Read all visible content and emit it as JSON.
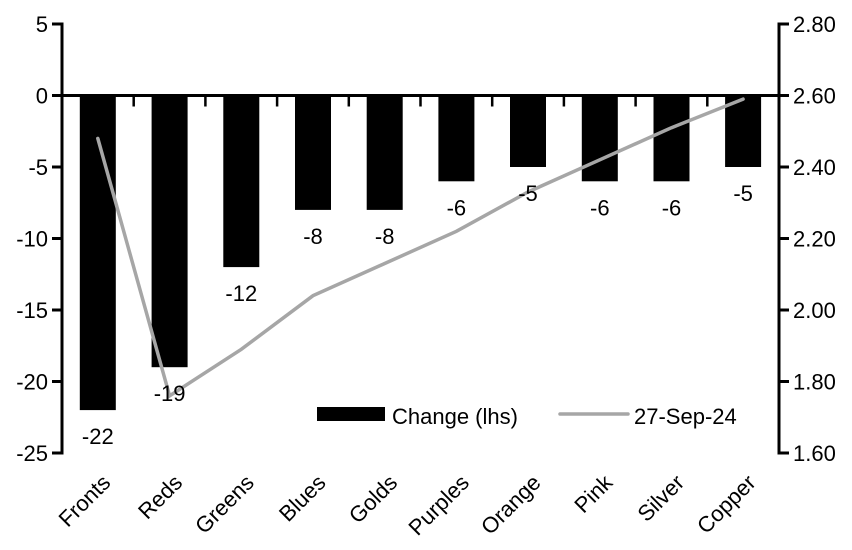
{
  "chart_data": {
    "type": "combo",
    "title": "",
    "categories": [
      "Fronts",
      "Reds",
      "Greens",
      "Blues",
      "Golds",
      "Purples",
      "Orange",
      "Pink",
      "Silver",
      "Copper"
    ],
    "series": [
      {
        "name": "Change (lhs)",
        "type": "bar",
        "axis": "left",
        "color": "#000000",
        "values": [
          -22,
          -19,
          -12,
          -8,
          -8,
          -6,
          -5,
          -6,
          -6,
          -5
        ],
        "data_labels": [
          "-22",
          "-19",
          "-12",
          "-8",
          "-8",
          "-6",
          "-5",
          "-6",
          "-6",
          "-5"
        ]
      },
      {
        "name": "27-Sep-24",
        "type": "line",
        "axis": "right",
        "color": "#a6a6a6",
        "values": [
          2.48,
          1.76,
          1.89,
          2.04,
          2.13,
          2.22,
          2.33,
          2.42,
          2.51,
          2.59
        ]
      }
    ],
    "left_axis": {
      "min": -25,
      "max": 5,
      "tick_values": [
        5,
        0,
        -5,
        -10,
        -15,
        -20,
        -25
      ],
      "tick_labels": [
        "5",
        "0",
        "-5",
        "-10",
        "-15",
        "-20",
        "-25"
      ]
    },
    "right_axis": {
      "min": 1.6,
      "max": 2.8,
      "tick_values": [
        2.8,
        2.6,
        2.4,
        2.2,
        2.0,
        1.8,
        1.6
      ],
      "tick_labels": [
        "2.80",
        "2.60",
        "2.40",
        "2.20",
        "2.00",
        "1.80",
        "1.60"
      ]
    },
    "legend": {
      "position": "bottom-inside",
      "entries": [
        {
          "label": "Change (lhs)",
          "swatch": "bar",
          "color": "#000000"
        },
        {
          "label": "27-Sep-24",
          "swatch": "line",
          "color": "#a6a6a6"
        }
      ]
    },
    "grid": false,
    "axis_color": "#000000",
    "background": "#ffffff"
  }
}
